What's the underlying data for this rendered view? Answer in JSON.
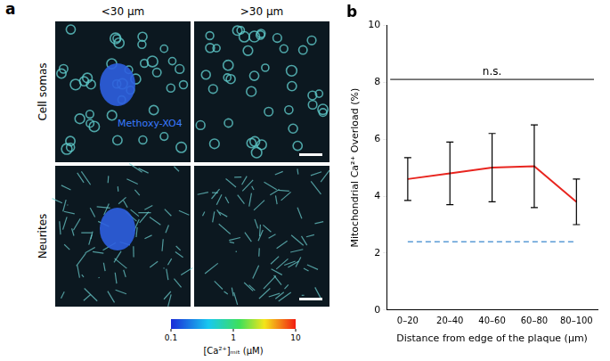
{
  "panel_a": {
    "label": "a",
    "columns": [
      "<30 μm",
      ">30 μm"
    ],
    "rows": [
      "Cell somas",
      "Neurites"
    ],
    "stain_label": "Methoxy-XO4",
    "colorbar": {
      "label": "[Ca²⁺]ₘᵢₜ (μM)",
      "range": [
        0.1,
        10
      ],
      "ticks": [
        0.1,
        1,
        10
      ],
      "log": true
    }
  },
  "chart_data": {
    "type": "line",
    "title": "b",
    "x_label": "Distance from edge of the plaque (μm)",
    "y_label": "Mitochondrial Ca²⁺ Overload (%)",
    "categories": [
      "0–20",
      "20–40",
      "40–60",
      "60–80",
      "80–100"
    ],
    "values": [
      4.6,
      4.8,
      5.0,
      5.05,
      3.8
    ],
    "errors": [
      0.75,
      1.1,
      1.2,
      1.45,
      0.8
    ],
    "color": "#e8251f",
    "reference_line": {
      "value": 2.4,
      "color": "#5b9bd5",
      "line_style": "dashed"
    },
    "annotations": [
      {
        "text": "n.s.",
        "y": 8.1
      }
    ],
    "ylim": [
      0,
      10
    ],
    "yticks": [
      0,
      2,
      4,
      6,
      8,
      10
    ],
    "grid": false
  }
}
